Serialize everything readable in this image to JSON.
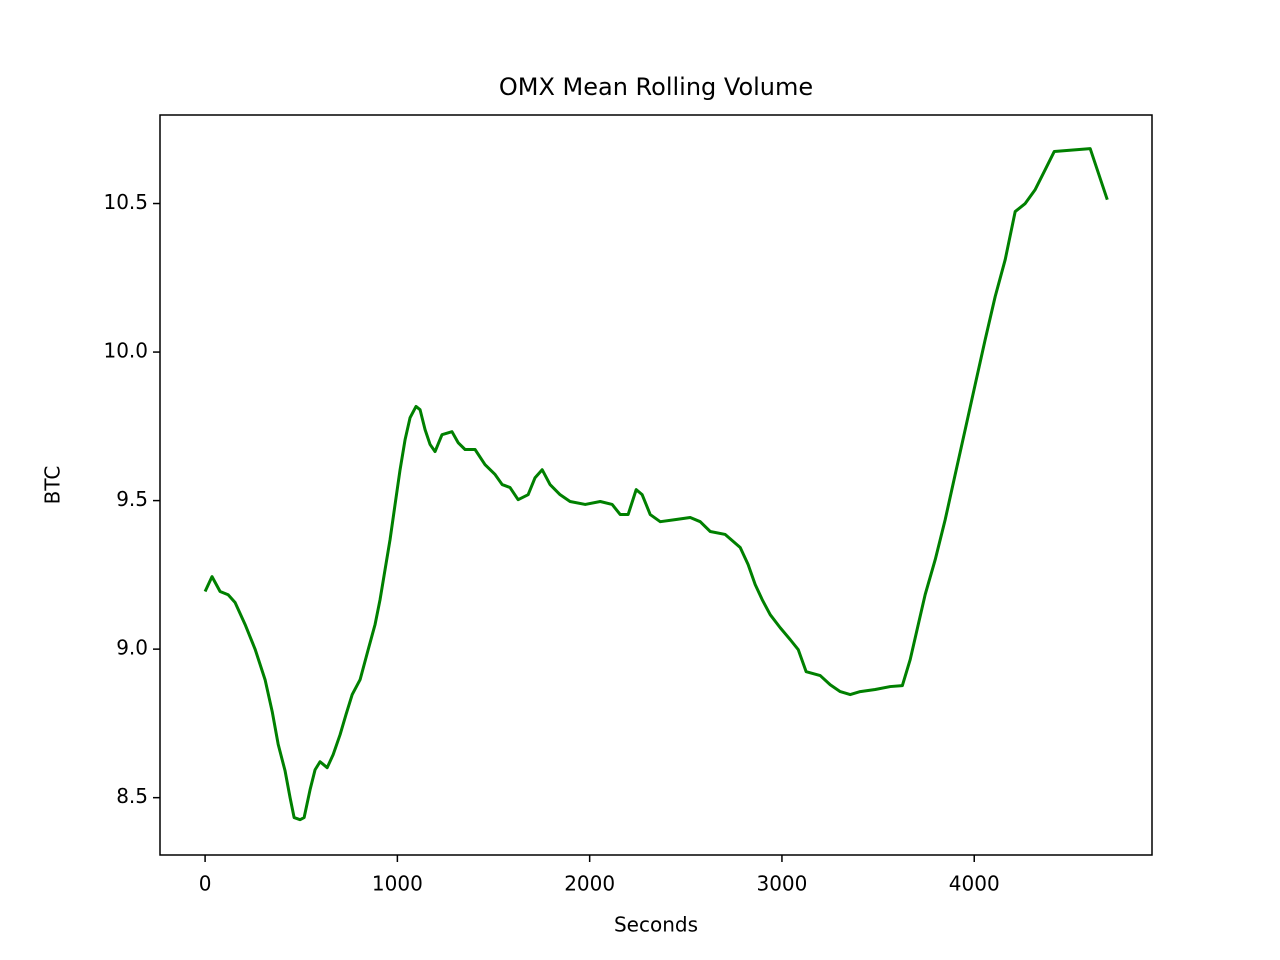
{
  "chart_data": {
    "type": "line",
    "title": "OMX Mean Rolling Volume",
    "x_label": "Seconds",
    "y_label": "BTC",
    "x": [
      0,
      36,
      78,
      120,
      156,
      208,
      260,
      312,
      349,
      380,
      416,
      442,
      463,
      494,
      515,
      546,
      572,
      598,
      635,
      666,
      702,
      733,
      765,
      806,
      848,
      884,
      910,
      936,
      962,
      988,
      1014,
      1040,
      1066,
      1097,
      1118,
      1144,
      1170,
      1196,
      1232,
      1284,
      1316,
      1352,
      1404,
      1456,
      1508,
      1545,
      1586,
      1628,
      1680,
      1716,
      1753,
      1794,
      1846,
      1898,
      1977,
      2055,
      2117,
      2159,
      2200,
      2242,
      2273,
      2315,
      2367,
      2445,
      2523,
      2575,
      2627,
      2705,
      2783,
      2824,
      2861,
      2897,
      2939,
      2991,
      3043,
      3085,
      3126,
      3199,
      3251,
      3303,
      3355,
      3407,
      3485,
      3563,
      3626,
      3667,
      3709,
      3745,
      3797,
      3849,
      3901,
      3953,
      4005,
      4057,
      4109,
      4161,
      4213,
      4265,
      4317,
      4369,
      4416,
      4603,
      4692
    ],
    "series": [
      {
        "name": "BTC",
        "color": "#008000",
        "values": [
          9.194,
          9.244,
          9.194,
          9.183,
          9.157,
          9.083,
          9.0,
          8.897,
          8.79,
          8.68,
          8.59,
          8.5,
          8.433,
          8.426,
          8.433,
          8.527,
          8.594,
          8.621,
          8.601,
          8.645,
          8.712,
          8.78,
          8.847,
          8.897,
          8.998,
          9.083,
          9.167,
          9.268,
          9.369,
          9.487,
          9.604,
          9.705,
          9.779,
          9.817,
          9.806,
          9.739,
          9.689,
          9.665,
          9.722,
          9.732,
          9.695,
          9.672,
          9.672,
          9.621,
          9.588,
          9.554,
          9.544,
          9.503,
          9.52,
          9.577,
          9.604,
          9.554,
          9.52,
          9.497,
          9.487,
          9.497,
          9.487,
          9.453,
          9.453,
          9.537,
          9.52,
          9.453,
          9.429,
          9.436,
          9.443,
          9.429,
          9.396,
          9.386,
          9.342,
          9.285,
          9.217,
          9.167,
          9.116,
          9.072,
          9.032,
          8.998,
          8.924,
          8.911,
          8.88,
          8.857,
          8.847,
          8.857,
          8.864,
          8.874,
          8.877,
          8.965,
          9.083,
          9.184,
          9.301,
          9.436,
          9.588,
          9.739,
          9.891,
          10.042,
          10.187,
          10.311,
          10.473,
          10.5,
          10.547,
          10.614,
          10.675,
          10.685,
          10.513
        ]
      }
    ],
    "xlim": [
      -234.5,
      4924.5
    ],
    "xticks": [
      0,
      1000,
      2000,
      3000,
      4000
    ],
    "ylim": [
      8.307,
      10.798
    ],
    "yticks": [
      8.5,
      {
        "value": 9,
        "label": "9.0"
      },
      9.5,
      {
        "value": 10,
        "label": "10.0"
      },
      10.5
    ],
    "grid": false
  }
}
